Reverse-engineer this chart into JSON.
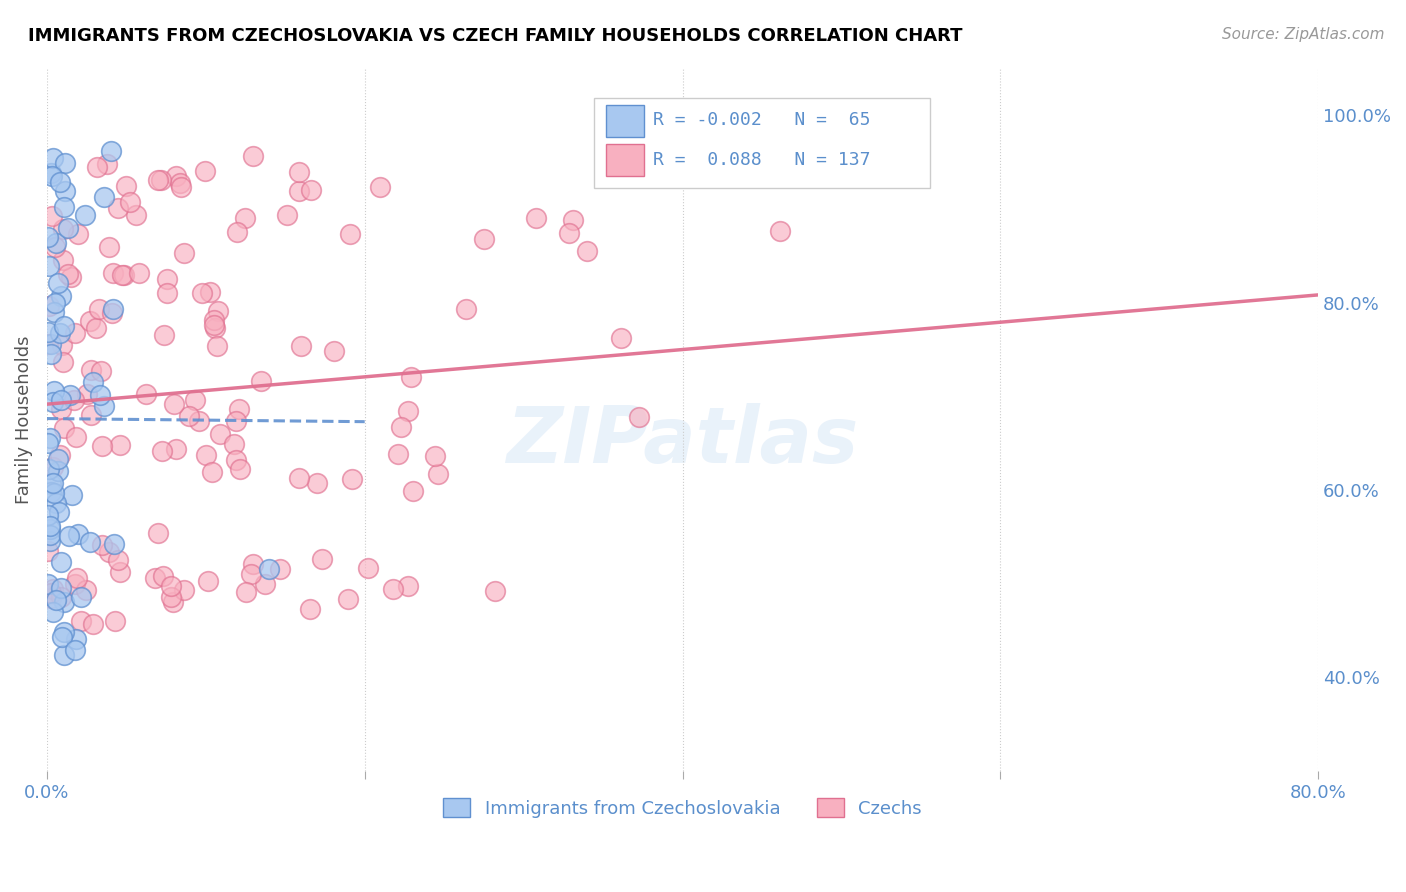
{
  "title": "IMMIGRANTS FROM CZECHOSLOVAKIA VS CZECH FAMILY HOUSEHOLDS CORRELATION CHART",
  "source": "Source: ZipAtlas.com",
  "ylabel": "Family Households",
  "legend_label1": "Immigrants from Czechoslovakia",
  "legend_label2": "Czechs",
  "r1": "-0.002",
  "n1": "65",
  "r2": "0.088",
  "n2": "137",
  "color_blue": "#A8C8F0",
  "color_pink": "#F8B0C0",
  "edge_blue": "#6090D0",
  "edge_pink": "#E07090",
  "line_blue": "#6090D0",
  "line_pink": "#E07090",
  "watermark": "ZIPatlas",
  "xlim": [
    0.0,
    0.8
  ],
  "ylim": [
    0.3,
    1.05
  ],
  "yticks": [
    1.0,
    0.8,
    0.6,
    0.4
  ],
  "yticklabels": [
    "100.0%",
    "80.0%",
    "60.0%",
    "40.0%"
  ],
  "xticks": [
    0.0,
    0.2,
    0.4,
    0.6,
    0.8
  ],
  "xticklabels": [
    "0.0%",
    "",
    "",
    "",
    "80.0%"
  ]
}
